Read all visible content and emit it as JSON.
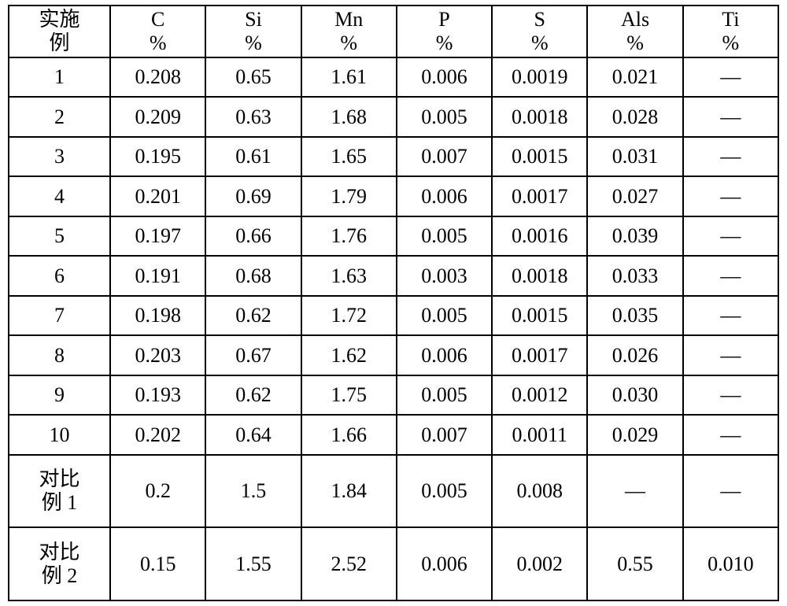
{
  "table": {
    "type": "table",
    "background_color": "#ffffff",
    "border_color": "#000000",
    "font_size_pt": 20,
    "font_family": "Times New Roman / SimSun",
    "column_alignments": [
      "center",
      "center",
      "center",
      "center",
      "center",
      "center",
      "center",
      "center"
    ],
    "column_widths_pct": [
      13.2,
      12.4,
      12.4,
      12.4,
      12.4,
      12.4,
      12.4,
      12.4
    ],
    "columns": [
      {
        "line1": "实施",
        "line2": "例"
      },
      {
        "line1": "C",
        "line2": "%"
      },
      {
        "line1": "Si",
        "line2": "%"
      },
      {
        "line1": "Mn",
        "line2": "%"
      },
      {
        "line1": "P",
        "line2": "%"
      },
      {
        "line1": "S",
        "line2": "%"
      },
      {
        "line1": "Als",
        "line2": "%"
      },
      {
        "line1": "Ti",
        "line2": "%"
      }
    ],
    "rows": [
      {
        "label_line1": "1",
        "label_line2": "",
        "c": "0.208",
        "si": "0.65",
        "mn": "1.61",
        "p": "0.006",
        "s": "0.0019",
        "als": "0.021",
        "ti": "—"
      },
      {
        "label_line1": "2",
        "label_line2": "",
        "c": "0.209",
        "si": "0.63",
        "mn": "1.68",
        "p": "0.005",
        "s": "0.0018",
        "als": "0.028",
        "ti": "—"
      },
      {
        "label_line1": "3",
        "label_line2": "",
        "c": "0.195",
        "si": "0.61",
        "mn": "1.65",
        "p": "0.007",
        "s": "0.0015",
        "als": "0.031",
        "ti": "—"
      },
      {
        "label_line1": "4",
        "label_line2": "",
        "c": "0.201",
        "si": "0.69",
        "mn": "1.79",
        "p": "0.006",
        "s": "0.0017",
        "als": "0.027",
        "ti": "—"
      },
      {
        "label_line1": "5",
        "label_line2": "",
        "c": "0.197",
        "si": "0.66",
        "mn": "1.76",
        "p": "0.005",
        "s": "0.0016",
        "als": "0.039",
        "ti": "—"
      },
      {
        "label_line1": "6",
        "label_line2": "",
        "c": "0.191",
        "si": "0.68",
        "mn": "1.63",
        "p": "0.003",
        "s": "0.0018",
        "als": "0.033",
        "ti": "—"
      },
      {
        "label_line1": "7",
        "label_line2": "",
        "c": "0.198",
        "si": "0.62",
        "mn": "1.72",
        "p": "0.005",
        "s": "0.0015",
        "als": "0.035",
        "ti": "—"
      },
      {
        "label_line1": "8",
        "label_line2": "",
        "c": "0.203",
        "si": "0.67",
        "mn": "1.62",
        "p": "0.006",
        "s": "0.0017",
        "als": "0.026",
        "ti": "—"
      },
      {
        "label_line1": "9",
        "label_line2": "",
        "c": "0.193",
        "si": "0.62",
        "mn": "1.75",
        "p": "0.005",
        "s": "0.0012",
        "als": "0.030",
        "ti": "—"
      },
      {
        "label_line1": "10",
        "label_line2": "",
        "c": "0.202",
        "si": "0.64",
        "mn": "1.66",
        "p": "0.007",
        "s": "0.0011",
        "als": "0.029",
        "ti": "—"
      },
      {
        "label_line1": "对比",
        "label_line2": "例 1",
        "c": "0.2",
        "si": "1.5",
        "mn": "1.84",
        "p": "0.005",
        "s": "0.008",
        "als": "—",
        "ti": "—"
      },
      {
        "label_line1": "对比",
        "label_line2": "例 2",
        "c": "0.15",
        "si": "1.55",
        "mn": "2.52",
        "p": "0.006",
        "s": "0.002",
        "als": "0.55",
        "ti": "0.010"
      }
    ]
  }
}
